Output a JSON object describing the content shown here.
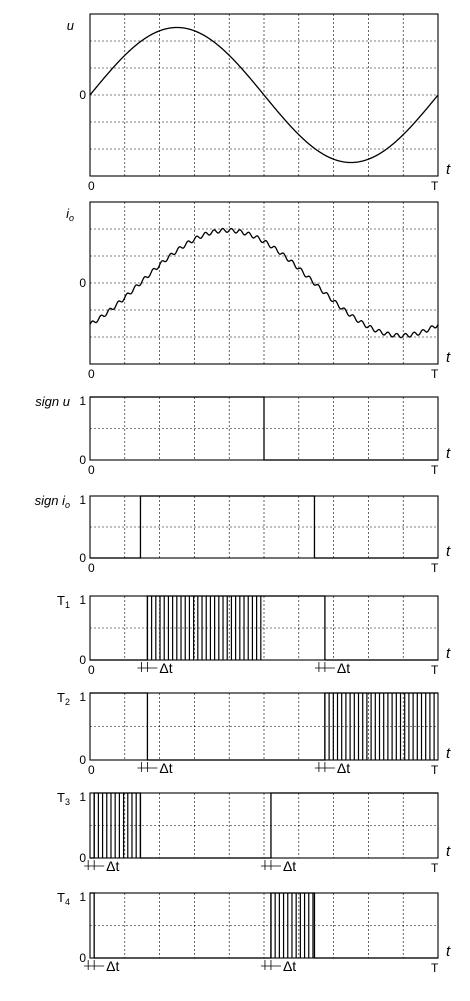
{
  "chart_data": [
    {
      "id": "u",
      "type": "line",
      "ylabel_main": "u",
      "ylabel_sub": "",
      "italic": true,
      "zero_label": "0",
      "x_start_label": "0",
      "x_end_label": "T",
      "x_axis_label": "t",
      "xlim": [
        0,
        1
      ],
      "ylim": [
        -1.2,
        1.2
      ],
      "grid": true,
      "series": [
        {
          "function": "sine",
          "amplitude": 1,
          "phase_deg": 0,
          "ripple": 0
        }
      ]
    },
    {
      "id": "io",
      "type": "line",
      "ylabel_main": "i",
      "ylabel_sub": "o",
      "italic": true,
      "zero_label": "0",
      "x_start_label": "0",
      "x_end_label": "T",
      "x_axis_label": "t",
      "xlim": [
        0,
        1
      ],
      "ylim": [
        -1.2,
        1.2
      ],
      "grid": true,
      "series": [
        {
          "function": "sine",
          "amplitude": 0.78,
          "phase_deg": -52,
          "ripple": 0.03
        }
      ]
    },
    {
      "id": "sign-u",
      "type": "step",
      "ylabel_main": "sign u",
      "ylabel_sub": "",
      "italic": true,
      "one_label": "1",
      "zero_label": "0",
      "x_start_label": "0",
      "x_end_label": "T",
      "x_axis_label": "t",
      "xlim": [
        0,
        1
      ],
      "ylim": [
        0,
        1
      ],
      "grid": true,
      "high_intervals": [
        [
          0,
          0.5
        ]
      ],
      "pwm_intervals": []
    },
    {
      "id": "sign-io",
      "type": "step",
      "ylabel_main": "sign i",
      "ylabel_sub": "o",
      "italic": true,
      "one_label": "1",
      "zero_label": "0",
      "x_start_label": "0",
      "x_end_label": "T",
      "x_axis_label": "t",
      "xlim": [
        0,
        1
      ],
      "ylim": [
        0,
        1
      ],
      "grid": true,
      "high_intervals": [
        [
          0.145,
          0.645
        ]
      ],
      "pwm_intervals": []
    },
    {
      "id": "T1",
      "type": "step",
      "ylabel_main": "T",
      "ylabel_sub": "1",
      "italic": false,
      "one_label": "1",
      "zero_label": "0",
      "x_start_label": "0",
      "x_end_label": "T",
      "x_axis_label": "t",
      "xlim": [
        0,
        1
      ],
      "ylim": [
        0,
        1
      ],
      "grid": true,
      "high_intervals": [
        [
          0.5,
          0.675
        ]
      ],
      "pwm_intervals": [
        [
          0.165,
          0.5
        ]
      ],
      "delta_label": "Δt",
      "delta_markers": [
        0.165,
        0.675
      ]
    },
    {
      "id": "T2",
      "type": "step",
      "ylabel_main": "T",
      "ylabel_sub": "2",
      "italic": false,
      "one_label": "1",
      "zero_label": "0",
      "x_start_label": "0",
      "x_end_label": "T",
      "x_axis_label": "t",
      "xlim": [
        0,
        1
      ],
      "ylim": [
        0,
        1
      ],
      "grid": true,
      "high_intervals": [
        [
          0,
          0.165
        ]
      ],
      "pwm_intervals": [
        [
          0.675,
          1.0
        ]
      ],
      "delta_label": "Δt",
      "delta_markers": [
        0.165,
        0.675
      ]
    },
    {
      "id": "T3",
      "type": "step",
      "ylabel_main": "T",
      "ylabel_sub": "3",
      "italic": false,
      "one_label": "1",
      "zero_label": "0",
      "x_start_label": "",
      "x_end_label": "T",
      "x_axis_label": "t",
      "xlim": [
        0,
        1
      ],
      "ylim": [
        0,
        1
      ],
      "grid": true,
      "high_intervals": [
        [
          0.52,
          1.0
        ]
      ],
      "pwm_intervals": [
        [
          0.012,
          0.145
        ]
      ],
      "delta_label": "Δt",
      "delta_markers": [
        0.012,
        0.52
      ]
    },
    {
      "id": "T4",
      "type": "step",
      "ylabel_main": "T",
      "ylabel_sub": "4",
      "italic": false,
      "one_label": "1",
      "zero_label": "0",
      "x_start_label": "",
      "x_end_label": "T",
      "x_axis_label": "t",
      "xlim": [
        0,
        1
      ],
      "ylim": [
        0,
        1
      ],
      "grid": true,
      "high_intervals": [
        [
          0,
          0.012
        ]
      ],
      "pwm_intervals": [
        [
          0.52,
          0.645
        ]
      ],
      "delta_label": "Δt",
      "delta_markers": [
        0.012,
        0.52
      ]
    }
  ]
}
